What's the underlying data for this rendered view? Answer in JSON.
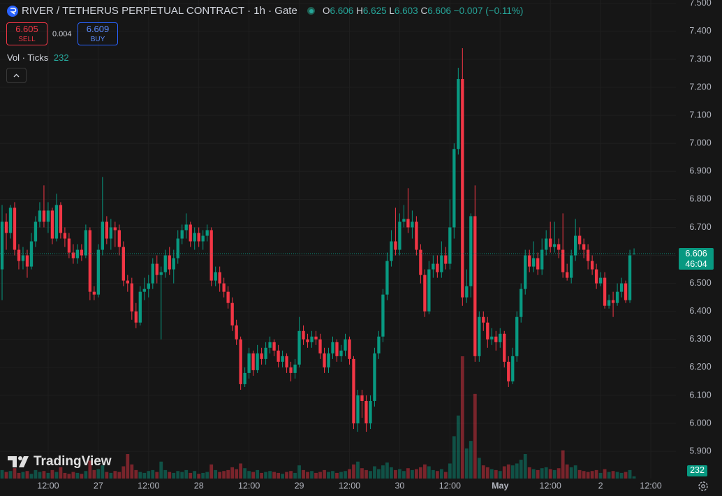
{
  "chart_data": {
    "type": "candlestick",
    "title": "RIVER / TETHERUS PERPETUAL CONTRACT · 1h · Gate",
    "legend_labels": [
      "O",
      "H",
      "L",
      "C"
    ],
    "change": {
      "value": -0.007,
      "label": "−0.007"
    },
    "change_percent": {
      "value": -0.11,
      "label": "(−0.11%)"
    },
    "sell": {
      "price": 6.605,
      "label": "SELL"
    },
    "spread": 0.004,
    "buy": {
      "price": 6.609,
      "label": "BUY"
    },
    "volume_title": "Vol · Ticks",
    "countdown": "46:04",
    "watermark": "TradingView",
    "up_color": "#089981",
    "down_color": "#f23645",
    "grid": true,
    "ylim": [
      5.803,
      7.512
    ],
    "yticks": [
      {
        "value": 5.9,
        "label": "5.900"
      },
      {
        "value": 6.0,
        "label": "6.000"
      },
      {
        "value": 6.1,
        "label": "6.100"
      },
      {
        "value": 6.2,
        "label": "6.200"
      },
      {
        "value": 6.3,
        "label": "6.300"
      },
      {
        "value": 6.4,
        "label": "6.400"
      },
      {
        "value": 6.5,
        "label": "6.500"
      },
      {
        "value": 6.6,
        "label": "6.600"
      },
      {
        "value": 6.7,
        "label": "6.700"
      },
      {
        "value": 6.8,
        "label": "6.800"
      },
      {
        "value": 6.9,
        "label": "6.900"
      },
      {
        "value": 7.0,
        "label": "7.000"
      },
      {
        "value": 7.1,
        "label": "7.100"
      },
      {
        "value": 7.2,
        "label": "7.200"
      },
      {
        "value": 7.3,
        "label": "7.300"
      },
      {
        "value": 7.4,
        "label": "7.400"
      },
      {
        "value": 7.5,
        "label": "7.500"
      }
    ],
    "xlim": [
      -0.5,
      161
    ],
    "xticks": [
      {
        "value": 11,
        "label": "12:00"
      },
      {
        "value": 23,
        "label": "27"
      },
      {
        "value": 35,
        "label": "12:00"
      },
      {
        "value": 47,
        "label": "28"
      },
      {
        "value": 59,
        "label": "12:00"
      },
      {
        "value": 71,
        "label": "29"
      },
      {
        "value": 83,
        "label": "12:00"
      },
      {
        "value": 95,
        "label": "30"
      },
      {
        "value": 107,
        "label": "12:00"
      },
      {
        "value": 119,
        "label": "May"
      },
      {
        "value": 131,
        "label": "12:00"
      },
      {
        "value": 143,
        "label": "2"
      },
      {
        "value": 155,
        "label": "12:00"
      }
    ],
    "open": [
      6.55,
      6.72,
      6.68,
      6.77,
      6.62,
      6.58,
      6.6,
      6.56,
      6.65,
      6.72,
      6.76,
      6.72,
      6.76,
      6.66,
      6.78,
      6.68,
      6.66,
      6.61,
      6.59,
      6.62,
      6.6,
      6.69,
      6.47,
      6.46,
      6.62,
      6.72,
      6.66,
      6.7,
      6.69,
      6.63,
      6.51,
      6.5,
      6.4,
      6.36,
      6.47,
      6.48,
      6.5,
      6.57,
      6.53,
      6.54,
      6.6,
      6.55,
      6.59,
      6.66,
      6.69,
      6.71,
      6.65,
      6.68,
      6.65,
      6.67,
      6.69,
      6.51,
      6.54,
      6.5,
      6.47,
      6.43,
      6.35,
      6.3,
      6.14,
      6.18,
      6.25,
      6.19,
      6.25,
      6.23,
      6.27,
      6.29,
      6.26,
      6.22,
      6.24,
      6.2,
      6.18,
      6.21,
      6.33,
      6.3,
      6.29,
      6.31,
      6.3,
      6.25,
      6.2,
      6.25,
      6.29,
      6.24,
      6.26,
      6.3,
      6.23,
      6.0,
      6.1,
      6.08,
      6.0,
      6.08,
      6.25,
      6.31,
      6.46,
      6.58,
      6.65,
      6.62,
      6.72,
      6.73,
      6.7,
      6.72,
      6.62,
      6.53,
      6.4,
      6.55,
      6.57,
      6.54,
      6.6,
      6.57,
      6.7,
      6.98,
      7.23,
      6.45,
      6.49,
      6.74,
      6.24,
      6.38,
      6.36,
      6.3,
      6.31,
      6.29,
      6.32,
      6.22,
      6.15,
      6.24,
      6.38,
      6.48,
      6.6,
      6.56,
      6.59,
      6.55,
      6.62,
      6.66,
      6.63,
      6.64,
      6.62,
      6.54,
      6.52,
      6.6,
      6.67,
      6.64,
      6.62,
      6.58,
      6.55,
      6.5,
      6.52,
      6.42,
      6.44,
      6.43,
      6.47,
      6.5,
      6.44,
      6.606
    ],
    "high": [
      6.78,
      6.75,
      6.78,
      6.79,
      6.64,
      6.63,
      6.62,
      6.68,
      6.74,
      6.79,
      6.85,
      6.79,
      6.77,
      6.82,
      6.79,
      6.7,
      6.68,
      6.64,
      6.64,
      6.64,
      6.71,
      6.7,
      6.49,
      6.64,
      6.88,
      6.74,
      6.73,
      6.72,
      6.71,
      6.65,
      6.53,
      6.52,
      6.43,
      6.49,
      6.52,
      6.53,
      6.59,
      6.6,
      6.56,
      6.62,
      6.63,
      6.62,
      6.69,
      6.71,
      6.75,
      6.72,
      6.7,
      6.7,
      6.69,
      6.71,
      6.7,
      6.56,
      6.56,
      6.52,
      6.49,
      6.45,
      6.37,
      6.31,
      6.2,
      6.27,
      6.26,
      6.28,
      6.27,
      6.29,
      6.31,
      6.3,
      6.28,
      6.26,
      6.25,
      6.22,
      6.23,
      6.38,
      6.35,
      6.32,
      6.33,
      6.33,
      6.32,
      6.27,
      6.27,
      6.31,
      6.3,
      6.28,
      6.32,
      6.31,
      6.24,
      6.12,
      6.12,
      6.1,
      6.1,
      6.27,
      6.33,
      6.48,
      6.61,
      6.69,
      6.77,
      6.75,
      6.78,
      6.84,
      6.76,
      6.74,
      6.64,
      6.55,
      6.58,
      6.6,
      6.6,
      6.65,
      6.63,
      6.8,
      7.0,
      7.27,
      7.34,
      6.55,
      6.75,
      6.85,
      6.4,
      6.4,
      6.38,
      6.34,
      6.33,
      6.34,
      6.33,
      6.24,
      6.27,
      6.4,
      6.5,
      6.62,
      6.62,
      6.65,
      6.61,
      6.66,
      6.69,
      6.72,
      6.72,
      6.66,
      6.75,
      6.57,
      6.62,
      6.73,
      6.7,
      6.66,
      6.64,
      6.6,
      6.57,
      6.54,
      6.54,
      6.46,
      6.47,
      6.5,
      6.52,
      6.51,
      6.62,
      6.625
    ],
    "low": [
      6.44,
      6.62,
      6.66,
      6.6,
      6.55,
      6.55,
      6.52,
      6.55,
      6.63,
      6.7,
      6.7,
      6.68,
      6.64,
      6.65,
      6.66,
      6.63,
      6.59,
      6.57,
      6.57,
      6.58,
      6.59,
      6.44,
      6.44,
      6.45,
      6.6,
      6.64,
      6.62,
      6.63,
      6.6,
      6.49,
      6.47,
      6.37,
      6.34,
      6.35,
      6.44,
      6.45,
      6.48,
      6.5,
      6.3,
      6.52,
      6.53,
      6.5,
      6.57,
      6.64,
      6.66,
      6.63,
      6.62,
      6.63,
      6.62,
      6.65,
      6.49,
      6.49,
      6.47,
      6.45,
      6.41,
      6.33,
      6.28,
      6.12,
      6.13,
      6.16,
      6.17,
      6.18,
      6.21,
      6.21,
      6.25,
      6.24,
      6.2,
      6.2,
      6.18,
      6.15,
      6.16,
      6.2,
      6.28,
      6.27,
      6.27,
      6.28,
      6.23,
      6.18,
      6.18,
      6.23,
      6.22,
      6.22,
      6.24,
      6.21,
      5.98,
      5.97,
      6.02,
      5.97,
      5.98,
      6.06,
      6.23,
      6.29,
      6.44,
      6.56,
      6.6,
      6.6,
      6.7,
      6.68,
      6.66,
      6.6,
      6.5,
      6.38,
      6.39,
      6.52,
      6.52,
      6.52,
      6.55,
      6.55,
      6.66,
      6.96,
      6.42,
      6.43,
      6.45,
      6.22,
      6.22,
      6.33,
      6.27,
      6.28,
      6.26,
      6.27,
      6.2,
      6.13,
      6.14,
      6.22,
      6.36,
      6.46,
      6.54,
      6.54,
      6.53,
      6.53,
      6.6,
      6.61,
      6.61,
      6.59,
      6.52,
      6.51,
      6.5,
      6.58,
      6.62,
      6.59,
      6.55,
      6.53,
      6.48,
      6.49,
      6.41,
      6.41,
      6.38,
      6.42,
      6.45,
      6.43,
      6.43,
      6.603
    ],
    "close": [
      6.72,
      6.68,
      6.77,
      6.62,
      6.58,
      6.6,
      6.56,
      6.65,
      6.72,
      6.76,
      6.72,
      6.76,
      6.66,
      6.78,
      6.68,
      6.66,
      6.61,
      6.59,
      6.62,
      6.6,
      6.69,
      6.47,
      6.46,
      6.62,
      6.72,
      6.66,
      6.7,
      6.69,
      6.63,
      6.51,
      6.5,
      6.4,
      6.36,
      6.47,
      6.48,
      6.5,
      6.57,
      6.53,
      6.54,
      6.6,
      6.55,
      6.59,
      6.66,
      6.69,
      6.71,
      6.65,
      6.68,
      6.65,
      6.67,
      6.69,
      6.51,
      6.54,
      6.5,
      6.47,
      6.43,
      6.35,
      6.3,
      6.14,
      6.18,
      6.25,
      6.19,
      6.25,
      6.23,
      6.27,
      6.29,
      6.26,
      6.22,
      6.24,
      6.2,
      6.18,
      6.21,
      6.33,
      6.3,
      6.29,
      6.31,
      6.3,
      6.25,
      6.2,
      6.25,
      6.29,
      6.24,
      6.26,
      6.3,
      6.23,
      6.0,
      6.1,
      6.08,
      6.0,
      6.08,
      6.25,
      6.31,
      6.46,
      6.58,
      6.65,
      6.62,
      6.72,
      6.73,
      6.7,
      6.72,
      6.62,
      6.53,
      6.4,
      6.55,
      6.57,
      6.54,
      6.6,
      6.57,
      6.7,
      6.98,
      7.23,
      6.45,
      6.49,
      6.74,
      6.24,
      6.38,
      6.36,
      6.3,
      6.31,
      6.29,
      6.32,
      6.22,
      6.15,
      6.24,
      6.38,
      6.48,
      6.6,
      6.56,
      6.59,
      6.55,
      6.62,
      6.66,
      6.63,
      6.64,
      6.62,
      6.54,
      6.52,
      6.6,
      6.67,
      6.64,
      6.62,
      6.58,
      6.55,
      6.5,
      6.52,
      6.42,
      6.44,
      6.43,
      6.47,
      6.5,
      6.44,
      6.6,
      6.606
    ],
    "volume": [
      900,
      700,
      800,
      1100,
      600,
      700,
      800,
      500,
      900,
      700,
      800,
      600,
      900,
      700,
      1200,
      600,
      500,
      700,
      600,
      500,
      800,
      1900,
      900,
      1000,
      1400,
      700,
      600,
      800,
      700,
      1300,
      2600,
      1500,
      900,
      700,
      600,
      800,
      900,
      700,
      1800,
      900,
      700,
      600,
      800,
      700,
      900,
      600,
      800,
      500,
      600,
      700,
      1500,
      900,
      700,
      800,
      900,
      1200,
      1000,
      1600,
      1100,
      800,
      700,
      900,
      600,
      700,
      800,
      700,
      600,
      500,
      700,
      800,
      600,
      1400,
      900,
      700,
      800,
      600,
      700,
      900,
      700,
      800,
      600,
      700,
      800,
      1000,
      1500,
      1800,
      1100,
      900,
      800,
      1300,
      1000,
      1400,
      1700,
      1200,
      900,
      1000,
      800,
      1100,
      900,
      1000,
      1200,
      1500,
      1300,
      900,
      800,
      1000,
      700,
      1600,
      4500,
      6700,
      13000,
      3200,
      4000,
      9000,
      2200,
      1400,
      1200,
      1000,
      900,
      800,
      1300,
      1500,
      1400,
      1600,
      2000,
      2600,
      1200,
      1000,
      900,
      1100,
      1200,
      1000,
      900,
      1100,
      3000,
      1500,
      1200,
      1400,
      900,
      800,
      700,
      800,
      900,
      600,
      1000,
      700,
      800,
      700,
      600,
      700,
      900,
      232
    ]
  }
}
